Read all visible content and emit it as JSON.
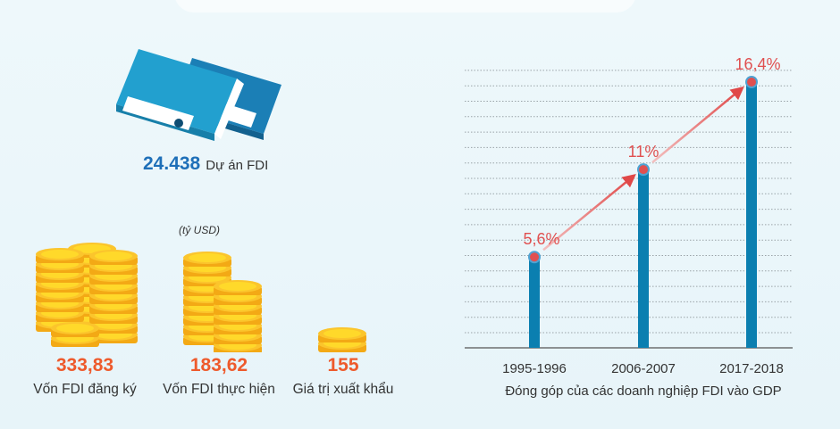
{
  "projects": {
    "value": "24.438",
    "label": "Dự án FDI"
  },
  "unit_note": "(tỷ USD)",
  "stats": [
    {
      "value": "333,83",
      "label": "Vốn FDI đăng ký"
    },
    {
      "value": "183,62",
      "label": "Vốn FDI thực hiện"
    },
    {
      "value": "155",
      "label": "Giá trị xuất khẩu"
    }
  ],
  "colors": {
    "bar": "#0b7fb0",
    "accent": "#e05050",
    "number": "#ee5a2c",
    "folder": "#1f8ec2"
  },
  "chart_data": {
    "type": "bar",
    "title": "Đóng góp của các doanh nghiệp FDI vào GDP",
    "categories": [
      "1995-1996",
      "2006-2007",
      "2017-2018"
    ],
    "values": [
      5.6,
      11,
      16.4
    ],
    "data_labels": [
      "5,6%",
      "11%",
      "16,4%"
    ],
    "xlabel": "",
    "ylabel": "",
    "ylim": [
      0,
      18
    ],
    "grid": true,
    "unit": "%"
  }
}
